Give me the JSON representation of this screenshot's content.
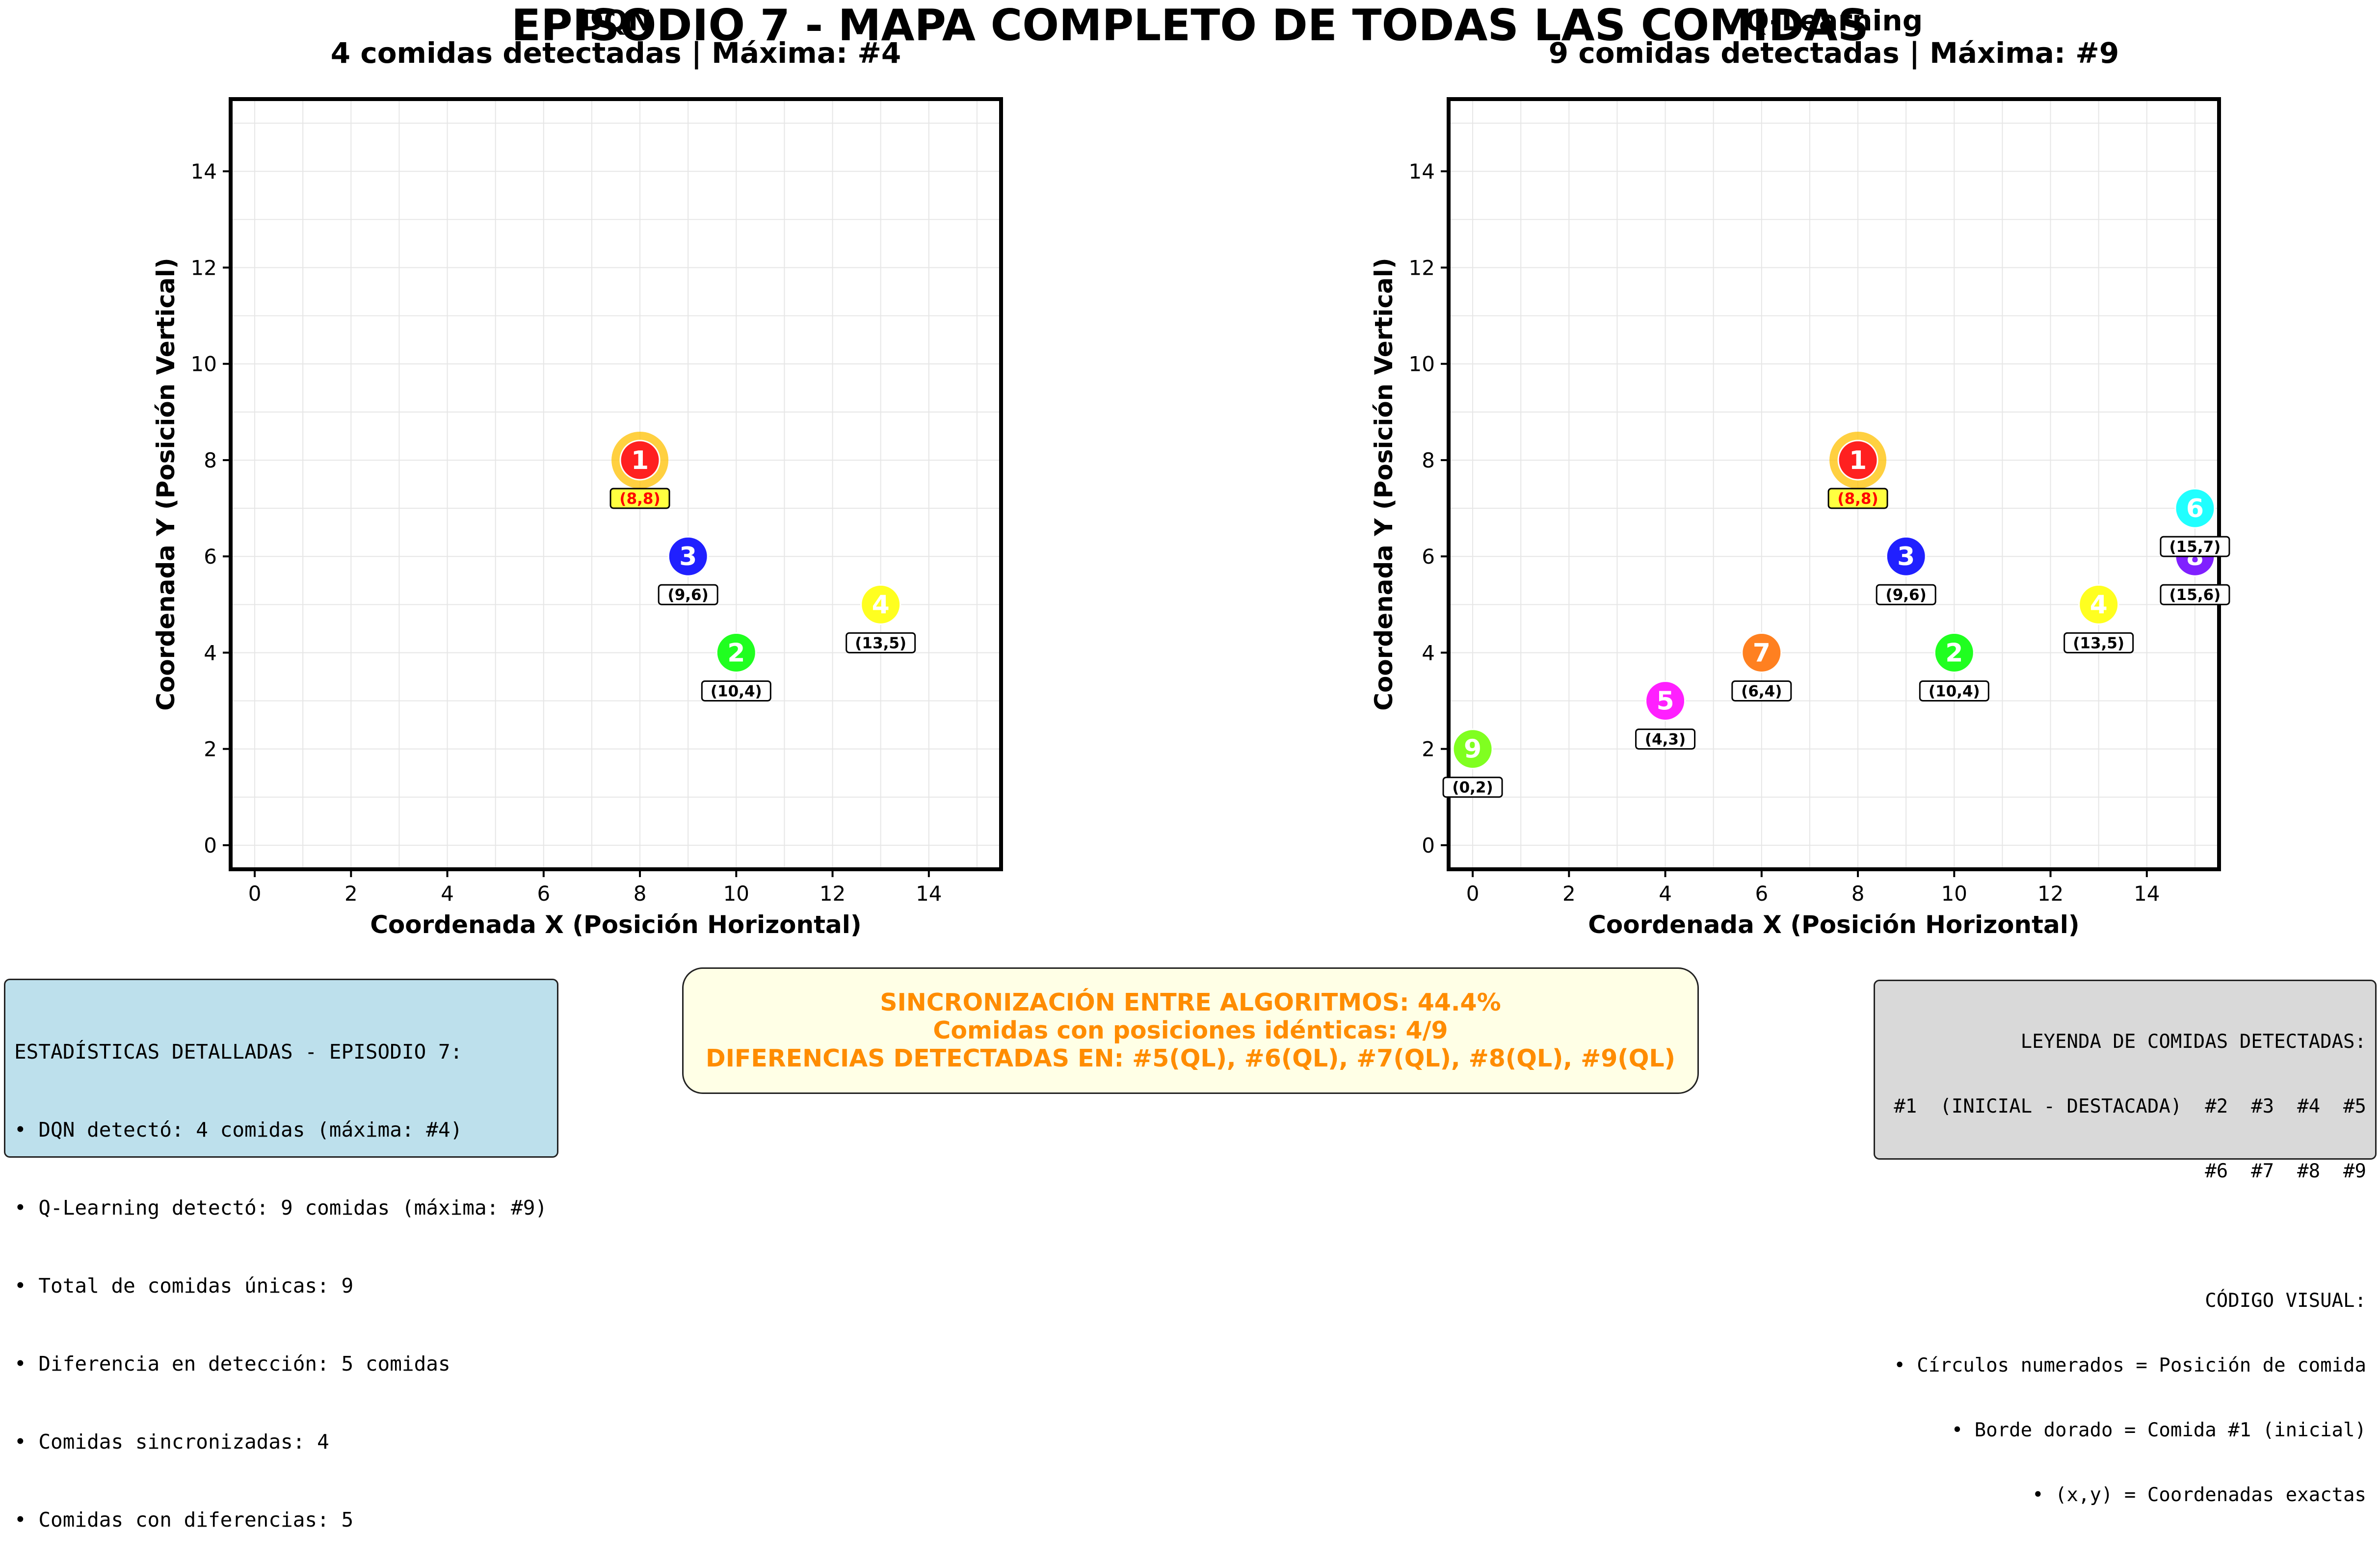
{
  "title": "EPISODIO 7 - MAPA COMPLETO DE TODAS LAS COMIDAS",
  "colors": {
    "1": "#ff2020",
    "2": "#20ff20",
    "3": "#2020ff",
    "4": "#ffff20",
    "5": "#ff20ff",
    "6": "#20ffff",
    "7": "#ff8020",
    "8": "#8020ff",
    "9": "#80ff20",
    "highlight_ring": "#ffc000",
    "label_highlight_bg": "#ffff40",
    "label_highlight_text": "#ff0000"
  },
  "chart_data": [
    {
      "type": "scatter",
      "title": "DQN",
      "subtitle": "4 comidas detectadas | Máxima: #4",
      "xlabel": "Coordenada X (Posición Horizontal)",
      "ylabel": "Coordenada Y (Posición Vertical)",
      "xlim": [
        -0.5,
        15.5
      ],
      "ylim": [
        -0.5,
        15.5
      ],
      "xticks": [
        0,
        2,
        4,
        6,
        8,
        10,
        12,
        14
      ],
      "yticks": [
        0,
        2,
        4,
        6,
        8,
        10,
        12,
        14
      ],
      "grid": true,
      "points": [
        {
          "id": 1,
          "label": "1",
          "x": 8,
          "y": 8,
          "coord": "(8,8)",
          "highlight": true
        },
        {
          "id": 2,
          "label": "2",
          "x": 10,
          "y": 4,
          "coord": "(10,4)"
        },
        {
          "id": 3,
          "label": "3",
          "x": 9,
          "y": 6,
          "coord": "(9,6)"
        },
        {
          "id": 4,
          "label": "4",
          "x": 13,
          "y": 5,
          "coord": "(13,5)"
        }
      ]
    },
    {
      "type": "scatter",
      "title": "Q-Learning",
      "subtitle": "9 comidas detectadas | Máxima: #9",
      "xlabel": "Coordenada X (Posición Horizontal)",
      "ylabel": "Coordenada Y (Posición Vertical)",
      "xlim": [
        -0.5,
        15.5
      ],
      "ylim": [
        -0.5,
        15.5
      ],
      "xticks": [
        0,
        2,
        4,
        6,
        8,
        10,
        12,
        14
      ],
      "yticks": [
        0,
        2,
        4,
        6,
        8,
        10,
        12,
        14
      ],
      "grid": true,
      "points": [
        {
          "id": 1,
          "label": "1",
          "x": 8,
          "y": 8,
          "coord": "(8,8)",
          "highlight": true
        },
        {
          "id": 2,
          "label": "2",
          "x": 10,
          "y": 4,
          "coord": "(10,4)"
        },
        {
          "id": 3,
          "label": "3",
          "x": 9,
          "y": 6,
          "coord": "(9,6)"
        },
        {
          "id": 4,
          "label": "4",
          "x": 13,
          "y": 5,
          "coord": "(13,5)"
        },
        {
          "id": 5,
          "label": "5",
          "x": 4,
          "y": 3,
          "coord": "(4,3)"
        },
        {
          "id": 8,
          "label": "8",
          "x": 15,
          "y": 6,
          "coord": "(15,6)"
        },
        {
          "id": 6,
          "label": "6",
          "x": 15,
          "y": 7,
          "coord": "(15,7)"
        },
        {
          "id": 7,
          "label": "7",
          "x": 6,
          "y": 4,
          "coord": "(6,4)"
        },
        {
          "id": 9,
          "label": "9",
          "x": 0,
          "y": 2,
          "coord": "(0,2)"
        }
      ]
    }
  ],
  "stats": {
    "lines": [
      "ESTADÍSTICAS DETALLADAS - EPISODIO 7:",
      "• DQN detectó: 4 comidas (máxima: #4)",
      "• Q-Learning detectó: 9 comidas (máxima: #9)",
      "• Total de comidas únicas: 9",
      "• Diferencia en detección: 5 comidas",
      "• Comidas sincronizadas: 4",
      "• Comidas con diferencias: 5"
    ]
  },
  "sync": {
    "lines": [
      "SINCRONIZACIÓN ENTRE ALGORITMOS: 44.4%",
      "Comidas con posiciones idénticas: 4/9",
      "DIFERENCIAS DETECTADAS EN: #5(QL), #6(QL), #7(QL), #8(QL), #9(QL)"
    ]
  },
  "legend": {
    "lines": [
      "LEYENDA DE COMIDAS DETECTADAS:",
      "#1  (INICIAL - DESTACADA)  #2  #3  #4  #5",
      "#6  #7  #8  #9",
      "",
      "CÓDIGO VISUAL:",
      "• Círculos numerados = Posición de comida",
      "• Borde dorado = Comida #1 (inicial)",
      "• (x,y) = Coordenadas exactas"
    ]
  }
}
